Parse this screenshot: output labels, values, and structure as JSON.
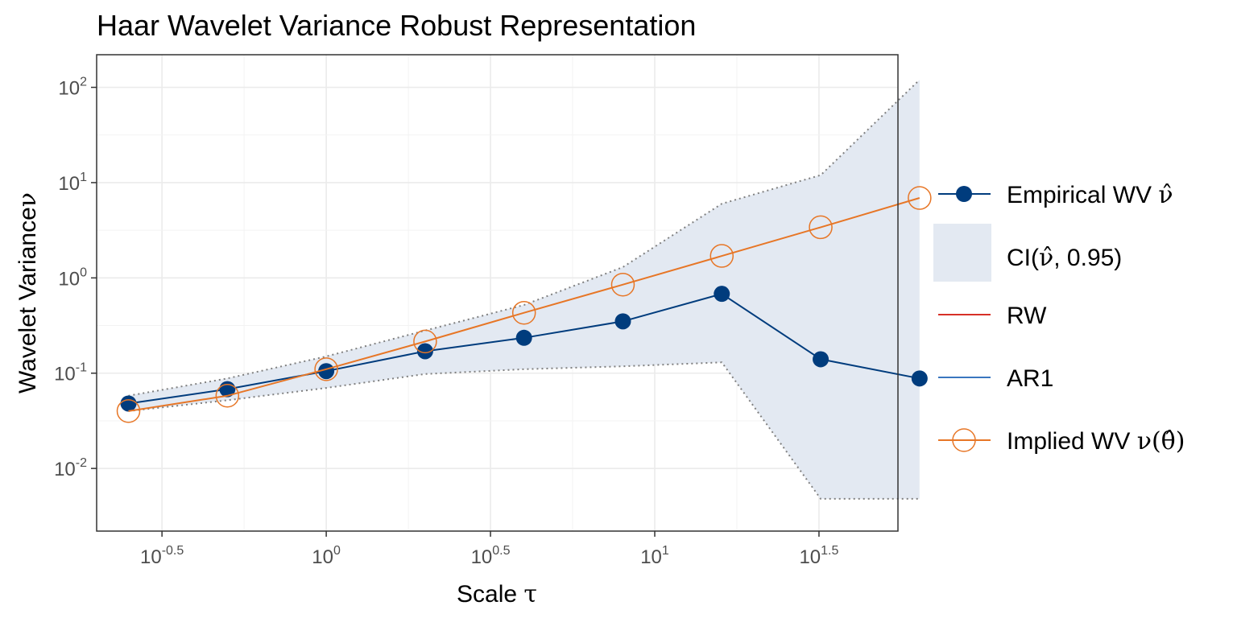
{
  "chart_data": {
    "type": "line",
    "title": "Haar Wavelet Variance Robust Representation",
    "xlabel": "Scale",
    "xlabel_symbol": "τ",
    "ylabel": "Wavelet Variance",
    "ylabel_symbol": "ν",
    "x_scale": "log10",
    "y_scale": "log10",
    "xlim": [
      0.2,
      55
    ],
    "ylim": [
      0.0022,
      220
    ],
    "x_ticks": [
      {
        "base": "10",
        "exp": "-0.5",
        "value": 0.3162
      },
      {
        "base": "10",
        "exp": "0",
        "value": 1
      },
      {
        "base": "10",
        "exp": "0.5",
        "value": 3.162
      },
      {
        "base": "10",
        "exp": "1",
        "value": 10
      },
      {
        "base": "10",
        "exp": "1.5",
        "value": 31.62
      }
    ],
    "y_ticks": [
      {
        "base": "10",
        "exp": "2",
        "value": 100
      },
      {
        "base": "10",
        "exp": "1",
        "value": 10
      },
      {
        "base": "10",
        "exp": "0",
        "value": 1
      },
      {
        "base": "10",
        "exp": "-1",
        "value": 0.1
      },
      {
        "base": "10",
        "exp": "-2",
        "value": 0.01
      }
    ],
    "x": [
      0.25,
      0.5,
      1,
      2,
      4,
      8,
      16,
      32,
      64
    ],
    "series": [
      {
        "name": "Empirical WV",
        "symbol": "ν̂",
        "values": [
          0.048,
          0.068,
          0.105,
          0.17,
          0.235,
          0.35,
          0.68,
          0.14,
          0.088
        ],
        "color": "#003c7d"
      },
      {
        "name": "Implied WV",
        "symbol": "ν(θ̂)",
        "values": [
          0.04,
          0.058,
          0.11,
          0.215,
          0.43,
          0.85,
          1.7,
          3.4,
          6.9
        ],
        "color": "#e77626"
      },
      {
        "name": "RW",
        "color": "#d73027"
      },
      {
        "name": "AR1",
        "color": "#3a76bf"
      }
    ],
    "ci": {
      "name": "CI(ν̂, 0.95)",
      "lower": [
        0.04,
        0.052,
        0.07,
        0.098,
        0.11,
        0.118,
        0.13,
        0.0048,
        0.0048
      ],
      "upper": [
        0.058,
        0.088,
        0.15,
        0.28,
        0.52,
        1.3,
        6.0,
        12.0,
        120.0
      ],
      "fill": "#e3e9f2",
      "stroke": "#808080"
    },
    "legend_position": "right",
    "grid": true
  },
  "legend": {
    "empirical": {
      "label": "Empirical WV",
      "symbol": "ν̂"
    },
    "ci": {
      "label": "CI(",
      "symbol": "ν̂",
      "suffix": ", 0.95)"
    },
    "rw": {
      "label": "RW"
    },
    "ar1": {
      "label": "AR1"
    },
    "implied": {
      "label": "Implied WV",
      "symbol": "ν(θ̂)"
    }
  }
}
